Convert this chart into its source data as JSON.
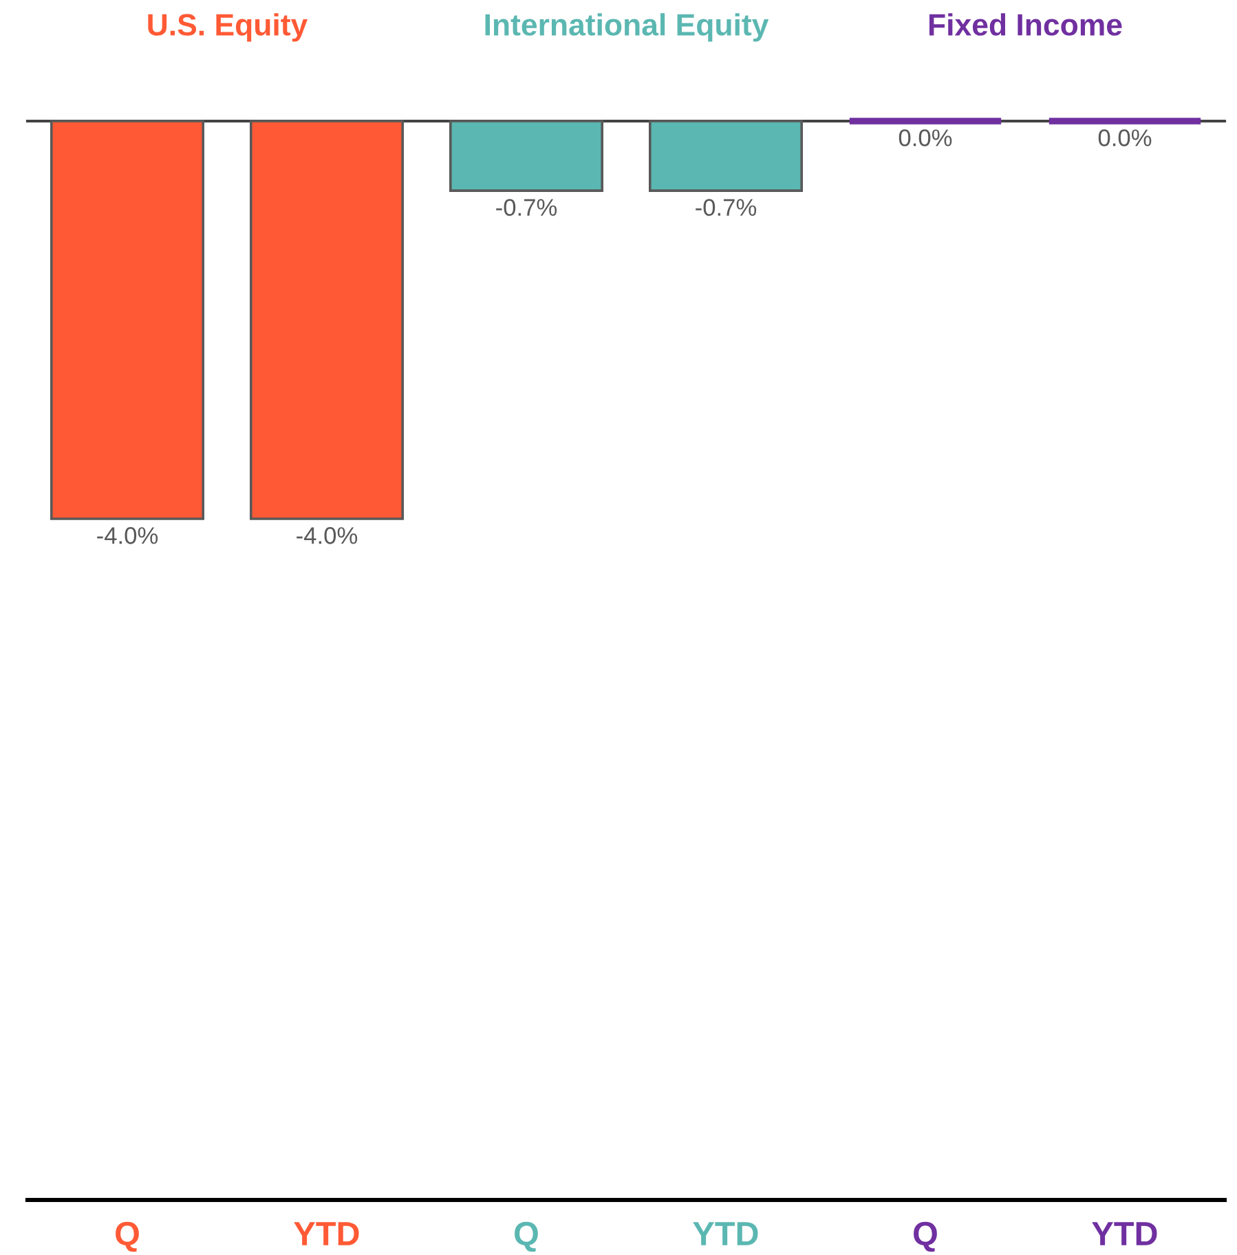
{
  "chart_data": {
    "type": "bar",
    "stacked": true,
    "categories": [
      "Q",
      "YTD",
      "Q",
      "YTD",
      "Q",
      "YTD"
    ],
    "series": [
      {
        "name": "U.S. Equity",
        "color": "#ff5a35",
        "values": [
          -4.0,
          -4.0,
          null,
          null,
          null,
          null
        ],
        "value_labels": [
          "-4.0%",
          "-4.0%",
          null,
          null,
          null,
          null
        ]
      },
      {
        "name": "International Equity",
        "color": "#5bb7b1",
        "values": [
          null,
          null,
          -0.7,
          -0.7,
          null,
          null
        ],
        "value_labels": [
          null,
          null,
          "-0.7%",
          "-0.7%",
          null,
          null
        ]
      },
      {
        "name": "Fixed Income",
        "color": "#7030a0",
        "values": [
          null,
          null,
          null,
          null,
          0.0,
          0.0
        ],
        "value_labels": [
          null,
          null,
          null,
          null,
          "0.0%",
          "0.0%"
        ]
      }
    ],
    "ylim": [
      -10.85,
      0
    ],
    "tick_labels": "x"
  }
}
